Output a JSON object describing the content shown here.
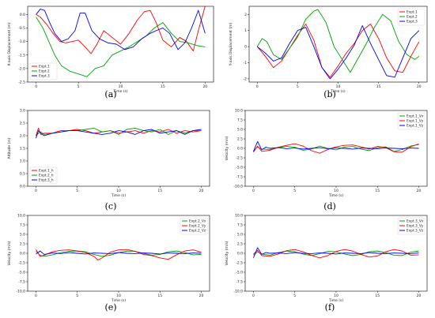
{
  "chart_data": [
    {
      "id": "a",
      "panel_label": "(a)",
      "type": "line",
      "xlabel": "Time (s)",
      "ylabel": "X-axis Displacement (m)",
      "xlim": [
        -1,
        21
      ],
      "ylim": [
        -2.5,
        0.3
      ],
      "xticks": [
        0,
        5,
        10,
        15,
        20
      ],
      "yticks": [
        -2.5,
        -2.0,
        -1.5,
        -1.0,
        -0.5,
        0.0
      ],
      "legend": "lower-left",
      "series": [
        {
          "name": "Expt.1",
          "color": "#ff0000",
          "x": [
            0,
            0.5,
            1.2,
            2,
            2.8,
            3.5,
            4.3,
            5,
            5.8,
            6.5,
            7.2,
            8,
            9,
            10,
            11,
            12,
            12.8,
            13.5,
            14.2,
            15,
            16,
            17,
            17.8,
            18.6,
            19.2,
            20
          ],
          "y": [
            0,
            -0.1,
            -0.35,
            -0.7,
            -1.0,
            -1.05,
            -1.0,
            -0.95,
            -1.2,
            -1.45,
            -1.1,
            -0.6,
            -0.85,
            -1.1,
            -0.7,
            -0.2,
            0.1,
            0.15,
            -0.3,
            -0.95,
            -1.2,
            -0.85,
            -1.0,
            -1.35,
            -0.6,
            0.3
          ]
        },
        {
          "name": "Expt.2",
          "color": "#00a000",
          "x": [
            0,
            0.8,
            1.5,
            2.2,
            3,
            4,
            5,
            6,
            7,
            8,
            9,
            10,
            11,
            12,
            13,
            14,
            15,
            16,
            17,
            18,
            19,
            20
          ],
          "y": [
            -0.1,
            -0.5,
            -1.0,
            -1.5,
            -1.9,
            -2.1,
            -2.2,
            -2.3,
            -2.0,
            -1.9,
            -1.5,
            -1.35,
            -1.2,
            -1.0,
            -0.8,
            -0.5,
            -0.3,
            -0.7,
            -1.0,
            -1.05,
            -1.15,
            -1.2
          ]
        },
        {
          "name": "Expt.3",
          "color": "#0000ff",
          "x": [
            0,
            0.5,
            1,
            1.6,
            2.2,
            3,
            3.8,
            4.6,
            5.2,
            5.8,
            6.6,
            7.5,
            8.5,
            9.5,
            10.5,
            11.5,
            12.5,
            13.5,
            14.2,
            15,
            15.8,
            16.8,
            17.6,
            18.4,
            19.2,
            20
          ],
          "y": [
            0.0,
            0.2,
            0.15,
            -0.3,
            -0.7,
            -1.0,
            -0.9,
            -0.6,
            0.05,
            0.05,
            -0.6,
            -0.9,
            -1.05,
            -1.1,
            -1.3,
            -1.2,
            -0.9,
            -0.7,
            -0.6,
            -0.5,
            -0.7,
            -1.3,
            -1.05,
            -0.5,
            0.15,
            -0.7
          ]
        }
      ]
    },
    {
      "id": "b",
      "panel_label": "(b)",
      "type": "line",
      "xlabel": "Time (s)",
      "ylabel": "Y-axis Displacement (m)",
      "xlim": [
        -1,
        21
      ],
      "ylim": [
        -2.2,
        2.5
      ],
      "xticks": [
        0,
        5,
        10,
        15,
        20
      ],
      "yticks": [
        -2,
        -1,
        0,
        1,
        2
      ],
      "legend": "top-right",
      "series": [
        {
          "name": "Expt.1",
          "color": "#ff0000",
          "x": [
            0,
            1,
            2,
            3,
            4,
            5,
            6,
            7,
            8,
            9,
            10,
            11,
            12,
            13,
            14,
            15,
            16,
            17,
            18,
            19,
            20
          ],
          "y": [
            0,
            -0.6,
            -1.3,
            -0.9,
            -0.1,
            0.7,
            1.4,
            0.4,
            -1.3,
            -1.9,
            -1.2,
            -0.4,
            0.2,
            1.0,
            1.4,
            0.5,
            -0.7,
            -1.5,
            -1.6,
            -0.6,
            0.3
          ]
        },
        {
          "name": "Expt.2",
          "color": "#00a000",
          "x": [
            0,
            0.6,
            1.2,
            2,
            3,
            4,
            5,
            6,
            7,
            7.5,
            8.5,
            9.5,
            10.5,
            11.5,
            12.5,
            13.5,
            14.5,
            15.5,
            16.5,
            17.5,
            18.5,
            19.5,
            20
          ],
          "y": [
            0,
            0.5,
            0.3,
            -0.5,
            -0.8,
            -0.1,
            0.6,
            1.7,
            2.2,
            2.3,
            1.5,
            0.0,
            -0.8,
            -1.6,
            -0.7,
            0.2,
            1.2,
            2.0,
            1.6,
            0.3,
            -0.5,
            -0.8,
            -0.6
          ]
        },
        {
          "name": "Expt.3",
          "color": "#0000ff",
          "x": [
            0,
            1,
            2,
            3,
            4,
            5,
            6,
            7,
            8,
            9,
            10,
            11,
            12,
            13,
            14,
            15,
            16,
            17,
            18,
            19,
            20
          ],
          "y": [
            0,
            -0.4,
            -0.9,
            -0.7,
            0.2,
            1.0,
            1.2,
            0.0,
            -1.3,
            -2.0,
            -1.4,
            -0.7,
            0.1,
            1.3,
            0.2,
            -0.8,
            -1.8,
            -1.9,
            -0.7,
            0.5,
            1.0
          ]
        }
      ]
    },
    {
      "id": "c",
      "panel_label": "(c)",
      "type": "line",
      "xlabel": "Time (s)",
      "ylabel": "Altitude (m)",
      "xlim": [
        -1,
        21
      ],
      "ylim": [
        0.0,
        3.0
      ],
      "xticks": [
        0,
        5,
        10,
        15,
        20
      ],
      "yticks": [
        0.0,
        0.5,
        1.0,
        1.5,
        2.0,
        2.5,
        3.0
      ],
      "legend": "lower-left",
      "series": [
        {
          "name": "Expt.1_h",
          "color": "#ff0000",
          "x": [
            0,
            0.3,
            0.6,
            1,
            2,
            3,
            4,
            5,
            6,
            7,
            8,
            9,
            10,
            11,
            12,
            13,
            14,
            15,
            16,
            17,
            18,
            19,
            20
          ],
          "y": [
            2.0,
            2.3,
            2.05,
            2.1,
            2.1,
            2.2,
            2.2,
            2.25,
            2.2,
            2.1,
            2.15,
            2.2,
            2.1,
            2.15,
            2.2,
            2.1,
            2.2,
            2.15,
            2.25,
            2.1,
            2.2,
            2.15,
            2.2
          ]
        },
        {
          "name": "Expt.2_h",
          "color": "#00a000",
          "x": [
            0,
            0.3,
            0.6,
            1,
            2,
            3,
            4,
            5,
            6,
            7,
            8,
            9,
            10,
            11,
            12,
            13,
            14,
            15,
            16,
            17,
            18,
            19,
            20
          ],
          "y": [
            2.0,
            2.1,
            2.15,
            2.05,
            2.1,
            2.15,
            2.2,
            2.2,
            2.25,
            2.3,
            2.15,
            2.2,
            2.05,
            2.25,
            2.3,
            2.2,
            2.15,
            2.25,
            2.05,
            2.2,
            2.1,
            2.2,
            2.2
          ]
        },
        {
          "name": "Expt.3_h",
          "color": "#0000ff",
          "x": [
            0,
            0.3,
            0.6,
            1,
            2,
            3,
            4,
            5,
            6,
            7,
            8,
            9,
            10,
            11,
            12,
            13,
            14,
            15,
            16,
            17,
            18,
            19,
            20
          ],
          "y": [
            1.9,
            2.2,
            2.1,
            2.0,
            2.1,
            2.15,
            2.2,
            2.2,
            2.15,
            2.1,
            2.05,
            2.1,
            2.2,
            2.15,
            2.05,
            2.2,
            2.25,
            2.1,
            2.15,
            2.2,
            2.05,
            2.2,
            2.25
          ]
        }
      ]
    },
    {
      "id": "d",
      "panel_label": "(d)",
      "type": "line",
      "xlabel": "Time (s)",
      "ylabel": "Velocity (m/s)",
      "xlim": [
        -1,
        21
      ],
      "ylim": [
        -10.0,
        10.0
      ],
      "xticks": [
        0,
        5,
        10,
        15,
        20
      ],
      "yticks": [
        -10.0,
        -7.5,
        -5.0,
        -2.5,
        0.0,
        2.5,
        5.0,
        7.5,
        10.0
      ],
      "legend": "top-right",
      "series": [
        {
          "name": "Expt.1_Vx",
          "color": "#00a000",
          "x": [
            0,
            0.5,
            1,
            2,
            3,
            4,
            5,
            6,
            7,
            8,
            9,
            10,
            11,
            12,
            13,
            14,
            15,
            16,
            17,
            18,
            19,
            20
          ],
          "y": [
            -0.8,
            0.4,
            -0.2,
            -0.3,
            0.2,
            0.5,
            0.3,
            -0.5,
            -0.2,
            0.6,
            0.0,
            -0.4,
            0.3,
            0.5,
            -0.2,
            -0.6,
            0.2,
            0.4,
            -0.8,
            -0.3,
            0.6,
            1.0
          ]
        },
        {
          "name": "Expt.1_Vy",
          "color": "#ff0000",
          "x": [
            0,
            0.5,
            1,
            2,
            3,
            4,
            5,
            6,
            7,
            8,
            9,
            10,
            11,
            12,
            13,
            14,
            15,
            16,
            17,
            18,
            19,
            20
          ],
          "y": [
            -1.0,
            0.6,
            -0.8,
            -0.5,
            0.3,
            0.8,
            1.2,
            0.6,
            -0.6,
            -1.3,
            -0.3,
            0.4,
            0.8,
            0.9,
            0.4,
            -0.2,
            0.5,
            0.2,
            -0.9,
            -1.0,
            0.4,
            1.2
          ]
        },
        {
          "name": "Expt.1_Vz",
          "color": "#0000ff",
          "x": [
            0,
            0.5,
            1,
            1.5,
            2,
            3,
            4,
            5,
            6,
            7,
            8,
            9,
            10,
            11,
            12,
            13,
            14,
            15,
            16,
            17,
            18,
            19,
            20
          ],
          "y": [
            -0.8,
            1.8,
            -0.4,
            0.3,
            0.0,
            0.2,
            -0.1,
            0.1,
            -0.2,
            0.0,
            0.2,
            -0.1,
            0.1,
            0.0,
            -0.2,
            0.1,
            0.0,
            -0.1,
            0.1,
            0.0,
            -0.1,
            0.1,
            0.0
          ]
        }
      ]
    },
    {
      "id": "e",
      "panel_label": "(e)",
      "type": "line",
      "xlabel": "Time (s)",
      "ylabel": "Velocity (m/s)",
      "xlim": [
        -1,
        21
      ],
      "ylim": [
        -10.0,
        10.0
      ],
      "xticks": [
        0,
        5,
        10,
        15,
        20
      ],
      "yticks": [
        -10.0,
        -7.5,
        -5.0,
        -2.5,
        0.0,
        2.5,
        5.0,
        7.5,
        10.0
      ],
      "legend": "top-right",
      "series": [
        {
          "name": "Expt.2_Vx",
          "color": "#00a000",
          "x": [
            0,
            0.5,
            1,
            2,
            3,
            4,
            5,
            6,
            7,
            8,
            9,
            10,
            11,
            12,
            13,
            14,
            15,
            16,
            17,
            18,
            19,
            20
          ],
          "y": [
            0.5,
            -0.5,
            -0.8,
            -0.4,
            0.2,
            0.5,
            0.6,
            0.4,
            -0.3,
            -0.8,
            -0.5,
            0.2,
            0.6,
            0.5,
            0.0,
            -0.5,
            -0.3,
            0.4,
            0.6,
            0.2,
            -0.4,
            -0.3
          ]
        },
        {
          "name": "Expt.2_Vy",
          "color": "#ff0000",
          "x": [
            0,
            0.5,
            1,
            2,
            3,
            4,
            5,
            6,
            7,
            7.5,
            8,
            9,
            10,
            11,
            12,
            13,
            14,
            15,
            16,
            17,
            18,
            19,
            20
          ],
          "y": [
            1.0,
            -0.8,
            -0.5,
            0.4,
            0.8,
            0.9,
            0.6,
            0.2,
            -0.8,
            -1.8,
            -1.2,
            0.3,
            0.9,
            1.0,
            0.5,
            -0.3,
            -0.6,
            -1.2,
            -1.6,
            -0.4,
            0.6,
            0.9,
            0.3
          ]
        },
        {
          "name": "Expt.2_Vz",
          "color": "#0000ff",
          "x": [
            0,
            0.5,
            1,
            2,
            3,
            4,
            5,
            6,
            7,
            8,
            9,
            10,
            11,
            12,
            13,
            14,
            15,
            16,
            17,
            18,
            19,
            20
          ],
          "y": [
            -0.2,
            0.6,
            -0.3,
            0.1,
            -0.1,
            0.2,
            0.0,
            -0.2,
            0.1,
            0.0,
            -0.1,
            0.2,
            0.0,
            -0.1,
            0.1,
            0.0,
            -0.2,
            0.1,
            0.0,
            -0.1,
            0.1,
            0.0
          ]
        }
      ]
    },
    {
      "id": "f",
      "panel_label": "(f)",
      "type": "line",
      "xlabel": "Time (s)",
      "ylabel": "Velocity (m/s)",
      "xlim": [
        -1,
        21
      ],
      "ylim": [
        -10.0,
        10.0
      ],
      "xticks": [
        0,
        5,
        10,
        15,
        20
      ],
      "yticks": [
        -10.0,
        -7.5,
        -5.0,
        -2.5,
        0.0,
        2.5,
        5.0,
        7.5,
        10.0
      ],
      "legend": "top-right",
      "series": [
        {
          "name": "Expt.3_Vx",
          "color": "#00a000",
          "x": [
            0,
            0.5,
            1,
            2,
            3,
            4,
            5,
            6,
            7,
            8,
            9,
            10,
            11,
            12,
            13,
            14,
            15,
            16,
            17,
            18,
            19,
            20
          ],
          "y": [
            -0.5,
            0.4,
            -0.2,
            -0.5,
            0.2,
            0.6,
            0.4,
            -0.2,
            -0.6,
            -0.1,
            0.5,
            0.4,
            -0.2,
            -0.6,
            -0.3,
            0.4,
            0.6,
            0.2,
            -0.5,
            -0.6,
            0.3,
            0.6
          ]
        },
        {
          "name": "Expt.3_Vy",
          "color": "#ff0000",
          "x": [
            0,
            0.5,
            1,
            2,
            3,
            4,
            5,
            6,
            7,
            8,
            9,
            10,
            11,
            12,
            13,
            14,
            15,
            16,
            17,
            18,
            19,
            20
          ],
          "y": [
            -0.2,
            0.8,
            -0.6,
            -0.8,
            -0.2,
            0.7,
            1.0,
            0.4,
            -0.5,
            -1.2,
            -0.6,
            0.5,
            1.0,
            0.6,
            -0.3,
            -1.0,
            -0.7,
            0.4,
            1.0,
            0.6,
            -0.5,
            -0.4
          ]
        },
        {
          "name": "Expt.3_Vz",
          "color": "#0000ff",
          "x": [
            0,
            0.5,
            1,
            1.5,
            2,
            3,
            4,
            5,
            6,
            7,
            8,
            9,
            10,
            11,
            12,
            13,
            14,
            15,
            16,
            17,
            18,
            19,
            20
          ],
          "y": [
            -1.2,
            1.5,
            -0.3,
            0.2,
            0.0,
            0.1,
            -0.1,
            0.2,
            0.0,
            -0.1,
            0.1,
            0.0,
            -0.2,
            0.1,
            0.0,
            -0.1,
            0.2,
            0.0,
            -0.1,
            0.1,
            0.0,
            -0.1,
            0.1
          ]
        }
      ]
    }
  ]
}
